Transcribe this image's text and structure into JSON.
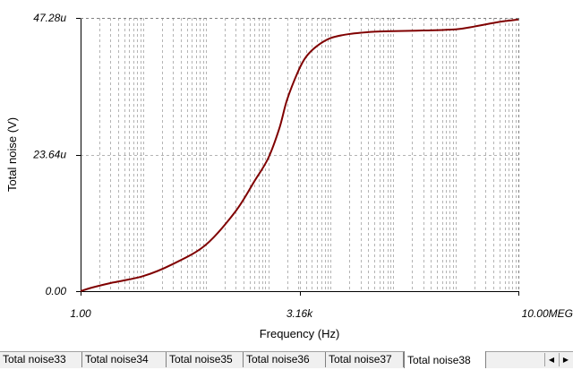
{
  "chart_data": {
    "type": "line",
    "xlabel": "Frequency (Hz)",
    "ylabel": "Total noise (V)",
    "x_scale": "log",
    "xlim": [
      1,
      10000000
    ],
    "ylim": [
      0,
      47.28
    ],
    "y_unit": "u",
    "x_tick_labels": [
      "1.00",
      "3.16k",
      "10.00MEG"
    ],
    "y_tick_labels": [
      "0.00",
      "23.64u",
      "47.28u"
    ],
    "grid": true,
    "line_color": "#800000",
    "series": [
      {
        "x": [
          1,
          1.5,
          3,
          10,
          30,
          100,
          300,
          600,
          1000,
          1500,
          2000,
          3000,
          4000,
          6000,
          10000,
          20000,
          50000,
          100000,
          300000,
          1000000,
          2000000,
          5000000,
          10000000
        ],
        "y": [
          0,
          0.6,
          1.4,
          2.6,
          4.7,
          8.0,
          13.8,
          19.0,
          23.0,
          28.1,
          33.1,
          38.0,
          40.5,
          42.4,
          43.8,
          44.5,
          44.9,
          45.0,
          45.1,
          45.3,
          45.8,
          46.6,
          47.0
        ]
      }
    ]
  },
  "tabs": [
    {
      "label": "Total noise33"
    },
    {
      "label": "Total noise34"
    },
    {
      "label": "Total noise35"
    },
    {
      "label": "Total noise36"
    },
    {
      "label": "Total noise37"
    },
    {
      "label": "Total noise38",
      "active": true
    }
  ],
  "scroll": {
    "left_icon": "arrow-left-icon",
    "right_icon": "arrow-right-icon",
    "left_glyph": "◀",
    "right_glyph": "▶"
  }
}
